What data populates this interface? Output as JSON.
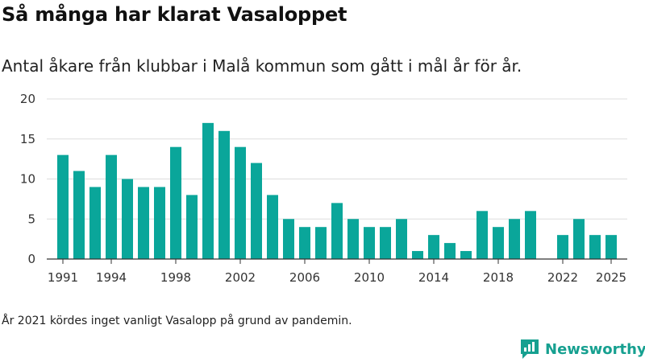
{
  "title": "Så många har klarat Vasaloppet",
  "subtitle": "Antal åkare från klubbar i Malå kommun som gått i mål år för år.",
  "note": "År 2021 kördes inget vanligt Vasalopp på grund av pandemin.",
  "brand": {
    "name": "Newsworthy",
    "logo_icon": "newsworthy-logo-icon",
    "color": "#16a090"
  },
  "colors": {
    "bar": "#0aa69a",
    "grid": "#dddddd",
    "axis": "#333333"
  },
  "chart_data": {
    "type": "bar",
    "x": [
      1991,
      1992,
      1993,
      1994,
      1995,
      1996,
      1997,
      1998,
      1999,
      2000,
      2001,
      2002,
      2003,
      2004,
      2005,
      2006,
      2007,
      2008,
      2009,
      2010,
      2011,
      2012,
      2013,
      2014,
      2015,
      2016,
      2017,
      2018,
      2019,
      2020,
      2021,
      2022,
      2023,
      2024,
      2025
    ],
    "values": [
      13,
      11,
      9,
      13,
      10,
      9,
      9,
      14,
      8,
      17,
      16,
      14,
      12,
      8,
      5,
      4,
      4,
      7,
      5,
      4,
      4,
      5,
      1,
      3,
      2,
      1,
      6,
      4,
      5,
      6,
      null,
      3,
      5,
      3,
      3
    ],
    "xticks": [
      "1991",
      "1994",
      "1998",
      "2002",
      "2006",
      "2010",
      "2014",
      "2018",
      "2022",
      "2025"
    ],
    "yticks": [
      "0",
      "5",
      "10",
      "15",
      "20"
    ],
    "ylim": [
      0,
      20
    ],
    "xlim": [
      1990,
      2026
    ],
    "grid": true
  }
}
